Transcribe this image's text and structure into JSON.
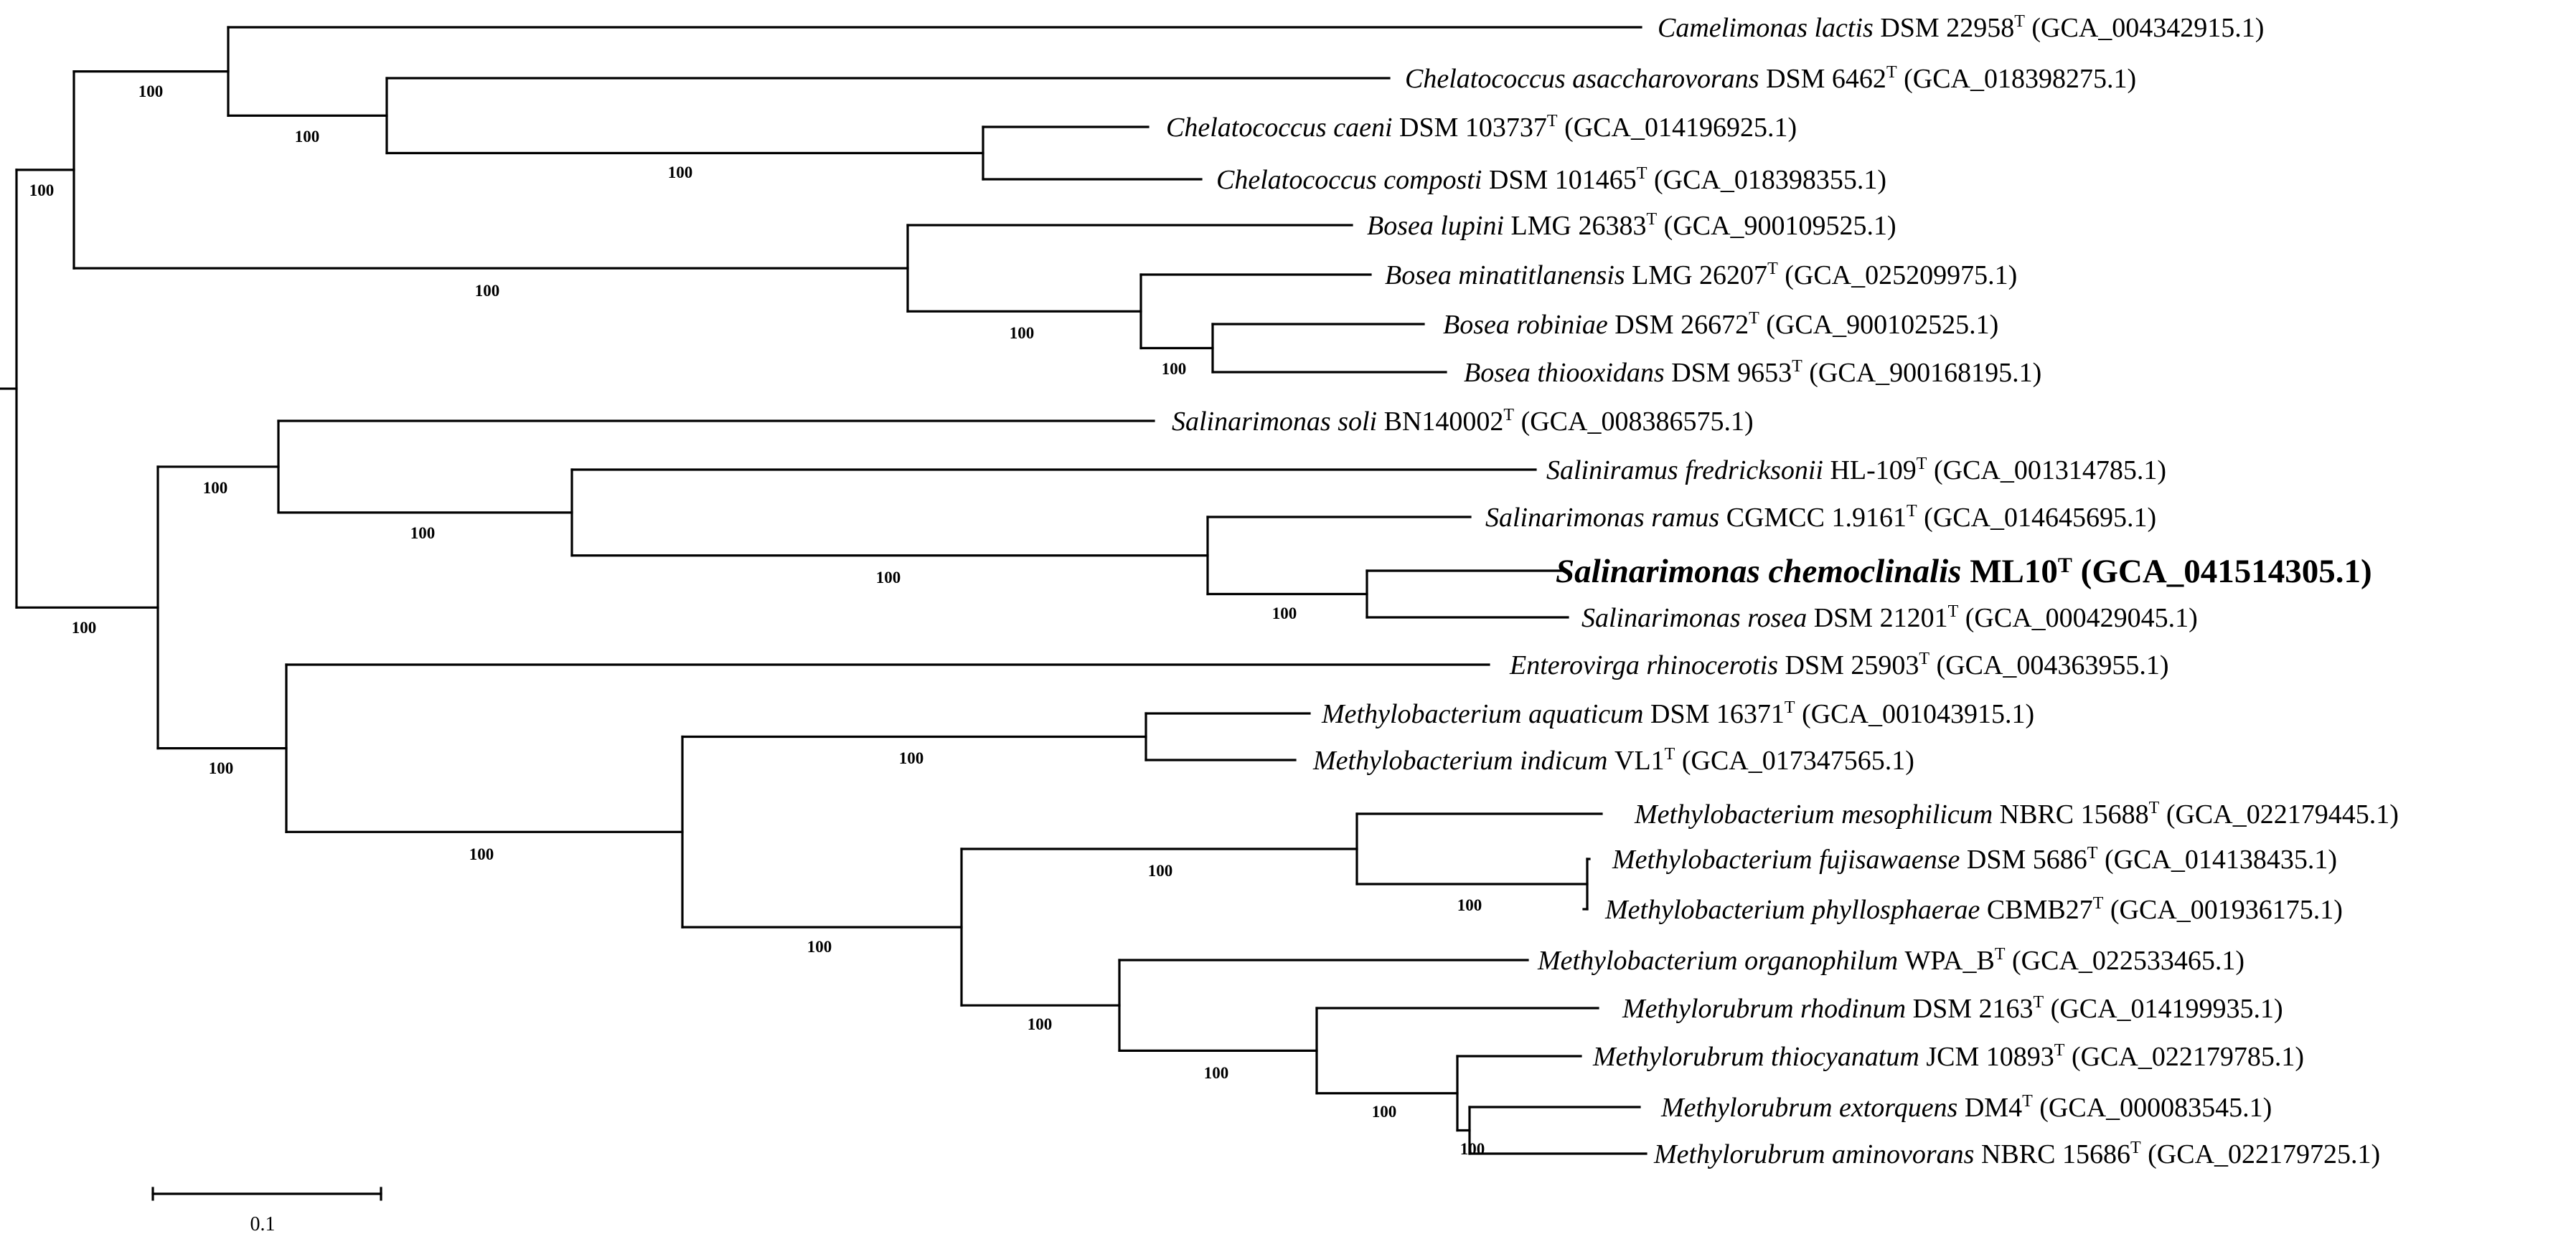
{
  "figure": {
    "title": "",
    "scale_bar_label": "0.1",
    "type_mark": "T"
  },
  "taxa": [
    {
      "genus_species": "Camelimonas lactis",
      "strain": "DSM 22958",
      "accession": "(GCA_004342915.1)",
      "highlight": false
    },
    {
      "genus_species": "Chelatococcus asaccharovorans",
      "strain": "DSM 6462",
      "accession": "(GCA_018398275.1)",
      "highlight": false
    },
    {
      "genus_species": "Chelatococcus caeni",
      "strain": "DSM 103737",
      "accession": "(GCA_014196925.1)",
      "highlight": false
    },
    {
      "genus_species": "Chelatococcus composti",
      "strain": "DSM 101465",
      "accession": "(GCA_018398355.1)",
      "highlight": false
    },
    {
      "genus_species": "Bosea lupini",
      "strain": "LMG 26383",
      "accession": "(GCA_900109525.1)",
      "highlight": false
    },
    {
      "genus_species": "Bosea minatitlanensis",
      "strain": "LMG 26207",
      "accession": "(GCA_025209975.1)",
      "highlight": false
    },
    {
      "genus_species": "Bosea robiniae",
      "strain": "DSM 26672",
      "accession": "(GCA_900102525.1)",
      "highlight": false
    },
    {
      "genus_species": "Bosea thiooxidans",
      "strain": "DSM 9653",
      "accession": "(GCA_900168195.1)",
      "highlight": false
    },
    {
      "genus_species": "Salinarimonas soli",
      "strain": "BN140002",
      "accession": "(GCA_008386575.1)",
      "highlight": false
    },
    {
      "genus_species": "Saliniramus fredricksonii",
      "strain": "HL-109",
      "accession": "(GCA_001314785.1)",
      "highlight": false
    },
    {
      "genus_species": "Salinarimonas ramus",
      "strain": "CGMCC 1.9161",
      "accession": "(GCA_014645695.1)",
      "highlight": false
    },
    {
      "genus_species": "Salinarimonas chemoclinalis",
      "strain": "ML10",
      "accession": "(GCA_041514305.1)",
      "highlight": true
    },
    {
      "genus_species": "Salinarimonas rosea",
      "strain": "DSM 21201",
      "accession": "(GCA_000429045.1)",
      "highlight": false
    },
    {
      "genus_species": "Enterovirga rhinocerotis",
      "strain": "DSM 25903",
      "accession": "(GCA_004363955.1)",
      "highlight": false
    },
    {
      "genus_species": "Methylobacterium aquaticum",
      "strain": "DSM 16371",
      "accession": "(GCA_001043915.1)",
      "highlight": false
    },
    {
      "genus_species": "Methylobacterium indicum",
      "strain": "VL1",
      "accession": "(GCA_017347565.1)",
      "highlight": false
    },
    {
      "genus_species": "Methylobacterium mesophilicum",
      "strain": "NBRC 15688",
      "accession": "(GCA_022179445.1)",
      "highlight": false
    },
    {
      "genus_species": "Methylobacterium fujisawaense",
      "strain": "DSM 5686",
      "accession": "(GCA_014138435.1)",
      "highlight": false
    },
    {
      "genus_species": "Methylobacterium phyllosphaerae",
      "strain": "CBMB27",
      "accession": "(GCA_001936175.1)",
      "highlight": false
    },
    {
      "genus_species": "Methylobacterium organophilum",
      "strain": "WPA_B",
      "accession": "(GCA_022533465.1)",
      "highlight": false
    },
    {
      "genus_species": "Methylorubrum rhodinum",
      "strain": "DSM 2163",
      "accession": "(GCA_014199935.1)",
      "highlight": false
    },
    {
      "genus_species": "Methylorubrum thiocyanatum",
      "strain": "JCM 10893",
      "accession": "(GCA_022179785.1)",
      "highlight": false
    },
    {
      "genus_species": "Methylorubrum extorquens",
      "strain": "DM4",
      "accession": "(GCA_000083545.1)",
      "highlight": false
    },
    {
      "genus_species": "Methylorubrum aminovorans",
      "strain": "NBRC 15686",
      "accession": "(GCA_022179725.1)",
      "highlight": false
    }
  ],
  "bootstrap_values": [
    "100",
    "100",
    "100",
    "100",
    "100",
    "100",
    "100",
    "100",
    "100",
    "100",
    "100",
    "100",
    "100",
    "100",
    "100",
    "100",
    "100",
    "100",
    "100",
    "100",
    "100",
    "100"
  ]
}
